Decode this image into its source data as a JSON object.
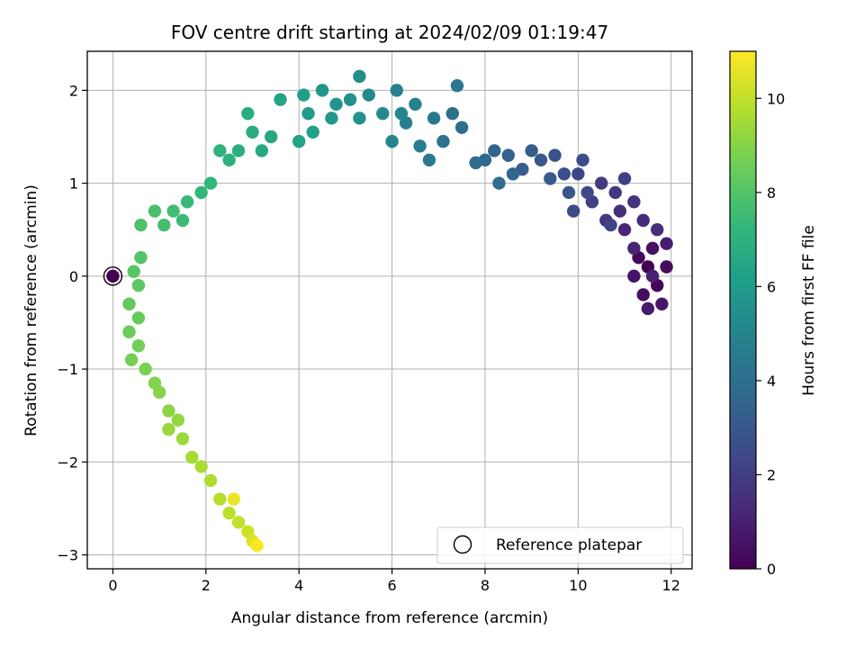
{
  "chart_data": {
    "type": "scatter",
    "title": "FOV centre drift starting at 2024/02/09 01:19:47",
    "xlabel": "Angular distance from reference (arcmin)",
    "ylabel": "Rotation from reference (arcmin)",
    "xlim": [
      -0.55,
      12.45
    ],
    "ylim": [
      -3.15,
      2.42
    ],
    "xticks": [
      0,
      2,
      4,
      6,
      8,
      10,
      12
    ],
    "xtick_labels": [
      "0",
      "2",
      "4",
      "6",
      "8",
      "10",
      "12"
    ],
    "yticks": [
      -3,
      -2,
      -1,
      0,
      1,
      2
    ],
    "ytick_labels": [
      "−3",
      "−2",
      "−1",
      "0",
      "1",
      "2"
    ],
    "grid": true,
    "colormap": "viridis",
    "colorbar": {
      "label": "Hours from first FF file",
      "range": [
        0,
        11
      ],
      "ticks": [
        0,
        2,
        4,
        6,
        8,
        10
      ],
      "tick_labels": [
        "0",
        "2",
        "4",
        "6",
        "8",
        "10"
      ]
    },
    "legend": {
      "placement": "lower-right",
      "entries": [
        "Reference platepar"
      ]
    },
    "reference_point": {
      "x": 0,
      "y": 0,
      "marker": "open-circle"
    },
    "series": [
      {
        "points": [
          [
            11.5,
            0.1,
            0.0
          ],
          [
            11.7,
            -0.1,
            0.1
          ],
          [
            11.3,
            0.2,
            0.2
          ],
          [
            11.9,
            0.1,
            0.3
          ],
          [
            11.4,
            -0.2,
            0.4
          ],
          [
            11.6,
            0.3,
            0.5
          ],
          [
            11.2,
            0.0,
            0.6
          ],
          [
            11.8,
            -0.3,
            0.7
          ],
          [
            11.5,
            -0.35,
            0.8
          ],
          [
            11.9,
            0.35,
            0.9
          ],
          [
            11.6,
            0.0,
            1.0
          ],
          [
            11.2,
            0.3,
            1.1
          ],
          [
            11.0,
            0.5,
            1.2
          ],
          [
            11.4,
            0.6,
            1.3
          ],
          [
            11.7,
            0.5,
            1.4
          ],
          [
            10.9,
            0.7,
            1.5
          ],
          [
            11.2,
            0.8,
            1.6
          ],
          [
            10.6,
            0.6,
            1.7
          ],
          [
            10.8,
            0.9,
            1.8
          ],
          [
            10.5,
            1.0,
            1.9
          ],
          [
            11.0,
            1.05,
            2.0
          ],
          [
            10.3,
            0.8,
            2.1
          ],
          [
            10.7,
            0.55,
            2.2
          ],
          [
            10.0,
            1.1,
            2.3
          ],
          [
            10.2,
            0.9,
            2.4
          ],
          [
            9.9,
            0.7,
            2.5
          ],
          [
            10.1,
            1.25,
            2.6
          ],
          [
            9.7,
            1.1,
            2.7
          ],
          [
            9.5,
            1.3,
            2.8
          ],
          [
            9.8,
            0.9,
            2.9
          ],
          [
            9.2,
            1.25,
            3.0
          ],
          [
            9.4,
            1.05,
            3.1
          ],
          [
            9.0,
            1.35,
            3.2
          ],
          [
            8.8,
            1.15,
            3.3
          ],
          [
            8.5,
            1.3,
            3.4
          ],
          [
            8.2,
            1.35,
            3.5
          ],
          [
            8.6,
            1.1,
            3.6
          ],
          [
            8.0,
            1.25,
            3.7
          ],
          [
            7.8,
            1.22,
            3.8
          ],
          [
            8.3,
            1.0,
            3.9
          ],
          [
            7.5,
            1.6,
            4.0
          ],
          [
            7.3,
            1.75,
            4.1
          ],
          [
            7.1,
            1.45,
            4.2
          ],
          [
            7.4,
            2.05,
            4.3
          ],
          [
            6.9,
            1.7,
            4.4
          ],
          [
            6.8,
            1.25,
            4.5
          ],
          [
            6.6,
            1.4,
            4.6
          ],
          [
            6.3,
            1.65,
            4.7
          ],
          [
            6.5,
            1.85,
            4.8
          ],
          [
            6.1,
            2.0,
            4.9
          ],
          [
            6.0,
            1.45,
            5.0
          ],
          [
            6.2,
            1.75,
            5.1
          ],
          [
            5.8,
            1.75,
            5.2
          ],
          [
            5.5,
            1.95,
            5.3
          ],
          [
            5.3,
            2.15,
            5.4
          ],
          [
            5.1,
            1.9,
            5.5
          ],
          [
            5.3,
            1.7,
            5.6
          ],
          [
            4.8,
            1.85,
            5.7
          ],
          [
            4.5,
            2.0,
            5.8
          ],
          [
            4.7,
            1.7,
            5.9
          ],
          [
            4.2,
            1.75,
            6.0
          ],
          [
            4.1,
            1.95,
            6.1
          ],
          [
            4.3,
            1.55,
            6.2
          ],
          [
            4.0,
            1.45,
            6.3
          ],
          [
            3.6,
            1.9,
            6.4
          ],
          [
            3.4,
            1.5,
            6.5
          ],
          [
            3.2,
            1.35,
            6.6
          ],
          [
            3.0,
            1.55,
            6.7
          ],
          [
            2.9,
            1.75,
            6.8
          ],
          [
            2.7,
            1.35,
            6.9
          ],
          [
            2.5,
            1.25,
            7.0
          ],
          [
            2.3,
            1.35,
            7.1
          ],
          [
            2.1,
            1.0,
            7.2
          ],
          [
            1.9,
            0.9,
            7.3
          ],
          [
            1.6,
            0.8,
            7.4
          ],
          [
            1.5,
            0.6,
            7.5
          ],
          [
            1.3,
            0.7,
            7.6
          ],
          [
            1.1,
            0.55,
            7.7
          ],
          [
            0.9,
            0.7,
            7.8
          ],
          [
            0.6,
            0.55,
            7.9
          ],
          [
            0.6,
            0.2,
            8.0
          ],
          [
            0.45,
            0.05,
            8.1
          ],
          [
            0.55,
            -0.1,
            8.2
          ],
          [
            0.35,
            -0.3,
            8.3
          ],
          [
            0.55,
            -0.45,
            8.4
          ],
          [
            0.35,
            -0.6,
            8.5
          ],
          [
            0.55,
            -0.75,
            8.6
          ],
          [
            0.4,
            -0.9,
            8.7
          ],
          [
            0.7,
            -1.0,
            8.8
          ],
          [
            0.9,
            -1.15,
            8.9
          ],
          [
            1.0,
            -1.25,
            9.0
          ],
          [
            1.2,
            -1.45,
            9.1
          ],
          [
            1.4,
            -1.55,
            9.2
          ],
          [
            1.2,
            -1.65,
            9.3
          ],
          [
            1.5,
            -1.75,
            9.4
          ],
          [
            1.7,
            -1.95,
            9.5
          ],
          [
            1.9,
            -2.05,
            9.6
          ],
          [
            2.1,
            -2.2,
            9.7
          ],
          [
            2.3,
            -2.4,
            9.8
          ],
          [
            2.5,
            -2.55,
            9.9
          ],
          [
            2.7,
            -2.65,
            10.0
          ],
          [
            2.9,
            -2.75,
            10.2
          ],
          [
            3.0,
            -2.85,
            10.5
          ],
          [
            2.6,
            -2.4,
            10.7
          ],
          [
            3.1,
            -2.9,
            11.0
          ]
        ]
      }
    ]
  }
}
